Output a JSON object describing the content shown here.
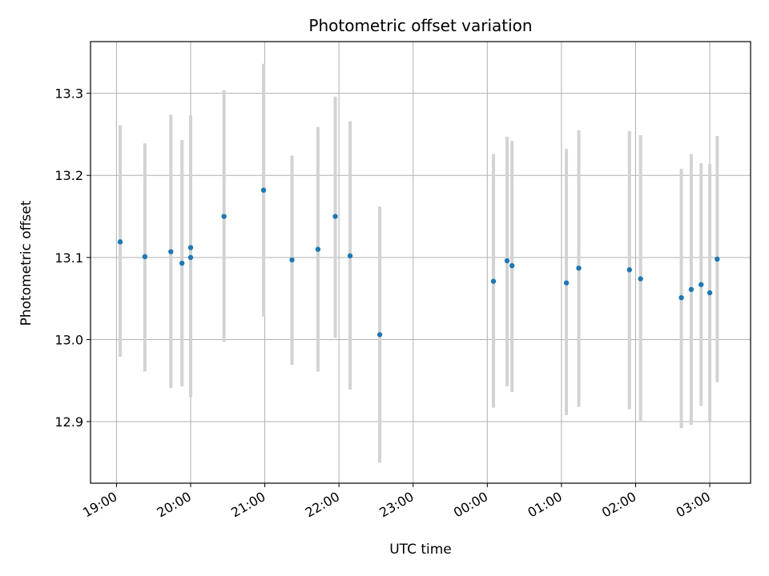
{
  "chart_data": {
    "type": "scatter",
    "title": "Photometric offset variation",
    "xlabel": "UTC time",
    "ylabel": "Photometric offset",
    "x_tick_labels": [
      "19:00",
      "20:00",
      "21:00",
      "22:00",
      "23:00",
      "00:00",
      "01:00",
      "02:00",
      "03:00"
    ],
    "y_tick_labels": [
      "12.9",
      "13.0",
      "13.1",
      "13.2",
      "13.3"
    ],
    "y_ticks": [
      12.9,
      13.0,
      13.1,
      13.2,
      13.3
    ],
    "xlim": [
      "18:39",
      "03:33"
    ],
    "ylim": [
      12.825,
      13.363
    ],
    "grid": true,
    "marker_color": "#1f77b4",
    "errorbar_color": "#d3d3d3",
    "points": [
      {
        "x": "19:03",
        "y": 13.119,
        "yerr_low": 12.979,
        "yerr_high": 13.261
      },
      {
        "x": "19:23",
        "y": 13.101,
        "yerr_low": 12.961,
        "yerr_high": 13.239
      },
      {
        "x": "19:44",
        "y": 13.107,
        "yerr_low": 12.941,
        "yerr_high": 13.274
      },
      {
        "x": "19:53",
        "y": 13.093,
        "yerr_low": 12.943,
        "yerr_high": 13.243
      },
      {
        "x": "20:00",
        "y": 13.112,
        "yerr_low": 12.93,
        "yerr_high": 13.273
      },
      {
        "x": "20:00",
        "y": 13.1,
        "yerr_low": 12.93,
        "yerr_high": 13.273
      },
      {
        "x": "20:27",
        "y": 13.15,
        "yerr_low": 12.997,
        "yerr_high": 13.304
      },
      {
        "x": "20:59",
        "y": 13.182,
        "yerr_low": 13.028,
        "yerr_high": 13.336
      },
      {
        "x": "21:22",
        "y": 13.097,
        "yerr_low": 12.969,
        "yerr_high": 13.224
      },
      {
        "x": "21:43",
        "y": 13.11,
        "yerr_low": 12.961,
        "yerr_high": 13.259
      },
      {
        "x": "21:57",
        "y": 13.15,
        "yerr_low": 13.002,
        "yerr_high": 13.296
      },
      {
        "x": "22:09",
        "y": 13.102,
        "yerr_low": 12.939,
        "yerr_high": 13.266
      },
      {
        "x": "22:33",
        "y": 13.006,
        "yerr_low": 12.85,
        "yerr_high": 13.162
      },
      {
        "x": "00:05",
        "y": 13.071,
        "yerr_low": 12.917,
        "yerr_high": 13.226
      },
      {
        "x": "00:16",
        "y": 13.096,
        "yerr_low": 12.943,
        "yerr_high": 13.247
      },
      {
        "x": "00:20",
        "y": 13.09,
        "yerr_low": 12.936,
        "yerr_high": 13.242
      },
      {
        "x": "01:04",
        "y": 13.069,
        "yerr_low": 12.908,
        "yerr_high": 13.232
      },
      {
        "x": "01:14",
        "y": 13.087,
        "yerr_low": 12.918,
        "yerr_high": 13.255
      },
      {
        "x": "01:55",
        "y": 13.085,
        "yerr_low": 12.915,
        "yerr_high": 13.254
      },
      {
        "x": "02:04",
        "y": 13.074,
        "yerr_low": 12.901,
        "yerr_high": 13.249
      },
      {
        "x": "02:37",
        "y": 13.051,
        "yerr_low": 12.892,
        "yerr_high": 13.208
      },
      {
        "x": "02:45",
        "y": 13.061,
        "yerr_low": 12.896,
        "yerr_high": 13.226
      },
      {
        "x": "02:53",
        "y": 13.067,
        "yerr_low": 12.919,
        "yerr_high": 13.215
      },
      {
        "x": "03:00",
        "y": 13.057,
        "yerr_low": 12.901,
        "yerr_high": 13.214
      },
      {
        "x": "03:06",
        "y": 13.098,
        "yerr_low": 12.948,
        "yerr_high": 13.248
      }
    ]
  }
}
